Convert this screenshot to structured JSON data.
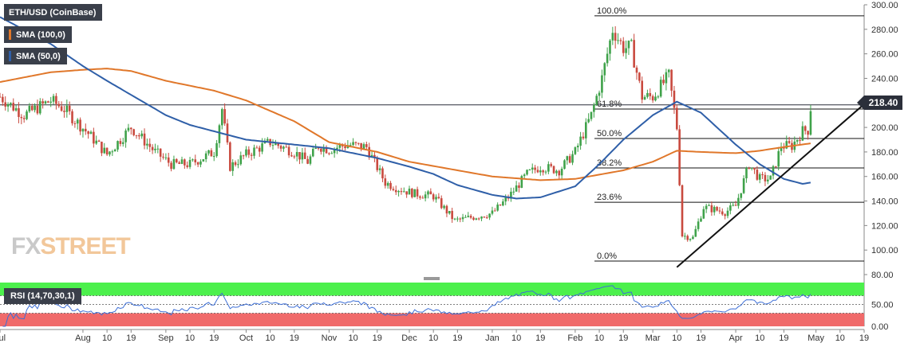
{
  "legend": {
    "symbol": "ETH/USD (CoinBase)",
    "sma100": "SMA (100,0)",
    "sma50": "SMA (50,0)",
    "rsi": "RSI (14,70,30,1)"
  },
  "colors": {
    "bull": "#3fa24a",
    "bear": "#c94a3f",
    "sma100": "#e0772a",
    "sma50": "#2f5fa8",
    "rsi_line": "#3d6fd6",
    "overbought": "#4cf04c",
    "oversold": "#f06a6a",
    "trendline": "#111111"
  },
  "logo": {
    "part1": "FX",
    "part2": "STREET"
  },
  "price_tag": "218.40",
  "chart_data": {
    "type": "candlestick",
    "title": "ETH/USD (CoinBase)",
    "y_axis": {
      "ticks": [
        80,
        100,
        120,
        140,
        160,
        180,
        200,
        220,
        240,
        260,
        280,
        300
      ],
      "ylim": [
        80,
        300
      ]
    },
    "x_axis": {
      "ticks": [
        {
          "label": "Jul",
          "date": "2019-07-01"
        },
        {
          "label": "Aug",
          "date": "2019-08-01"
        },
        {
          "label": "10",
          "date": "2019-08-10"
        },
        {
          "label": "19",
          "date": "2019-08-19"
        },
        {
          "label": "Sep",
          "date": "2019-09-01"
        },
        {
          "label": "10",
          "date": "2019-09-10"
        },
        {
          "label": "19",
          "date": "2019-09-19"
        },
        {
          "label": "Oct",
          "date": "2019-10-01"
        },
        {
          "label": "10",
          "date": "2019-10-10"
        },
        {
          "label": "19",
          "date": "2019-10-19"
        },
        {
          "label": "Nov",
          "date": "2019-11-01"
        },
        {
          "label": "10",
          "date": "2019-11-10"
        },
        {
          "label": "19",
          "date": "2019-11-19"
        },
        {
          "label": "Dec",
          "date": "2019-12-01"
        },
        {
          "label": "10",
          "date": "2019-12-10"
        },
        {
          "label": "19",
          "date": "2019-12-19"
        },
        {
          "label": "Jan",
          "date": "2020-01-01"
        },
        {
          "label": "10",
          "date": "2020-01-10"
        },
        {
          "label": "19",
          "date": "2020-01-19"
        },
        {
          "label": "Feb",
          "date": "2020-02-01"
        },
        {
          "label": "10",
          "date": "2020-02-10"
        },
        {
          "label": "19",
          "date": "2020-02-19"
        },
        {
          "label": "Mar",
          "date": "2020-03-01"
        },
        {
          "label": "10",
          "date": "2020-03-10"
        },
        {
          "label": "19",
          "date": "2020-03-19"
        },
        {
          "label": "Apr",
          "date": "2020-04-01"
        },
        {
          "label": "10",
          "date": "2020-04-10"
        },
        {
          "label": "19",
          "date": "2020-04-19"
        },
        {
          "label": "May",
          "date": "2020-05-01"
        },
        {
          "label": "10",
          "date": "2020-05-10"
        },
        {
          "label": "19",
          "date": "2020-05-19"
        }
      ],
      "range": [
        "2019-07-01",
        "2020-05-19"
      ]
    },
    "close_anchors": [
      [
        "2019-07-01",
        225
      ],
      [
        "2019-07-10",
        210
      ],
      [
        "2019-07-20",
        222
      ],
      [
        "2019-07-25",
        215
      ],
      [
        "2019-08-03",
        195
      ],
      [
        "2019-08-10",
        178
      ],
      [
        "2019-08-19",
        200
      ],
      [
        "2019-08-28",
        180
      ],
      [
        "2019-09-03",
        170
      ],
      [
        "2019-09-10",
        170
      ],
      [
        "2019-09-19",
        180
      ],
      [
        "2019-09-22",
        215
      ],
      [
        "2019-09-25",
        168
      ],
      [
        "2019-10-01",
        178
      ],
      [
        "2019-10-10",
        188
      ],
      [
        "2019-10-19",
        180
      ],
      [
        "2019-10-24",
        172
      ],
      [
        "2019-10-28",
        185
      ],
      [
        "2019-11-01",
        182
      ],
      [
        "2019-11-08",
        186
      ],
      [
        "2019-11-15",
        184
      ],
      [
        "2019-11-22",
        155
      ],
      [
        "2019-11-27",
        150
      ],
      [
        "2019-12-03",
        146
      ],
      [
        "2019-12-10",
        144
      ],
      [
        "2019-12-18",
        124
      ],
      [
        "2019-12-25",
        127
      ],
      [
        "2020-01-01",
        130
      ],
      [
        "2020-01-07",
        143
      ],
      [
        "2020-01-14",
        162
      ],
      [
        "2020-01-19",
        168
      ],
      [
        "2020-01-26",
        165
      ],
      [
        "2020-02-01",
        180
      ],
      [
        "2020-02-07",
        210
      ],
      [
        "2020-02-11",
        240
      ],
      [
        "2020-02-15",
        280
      ],
      [
        "2020-02-19",
        265
      ],
      [
        "2020-02-22",
        265
      ],
      [
        "2020-02-26",
        225
      ],
      [
        "2020-03-01",
        225
      ],
      [
        "2020-03-07",
        242
      ],
      [
        "2020-03-10",
        200
      ],
      [
        "2020-03-12",
        112
      ],
      [
        "2020-03-16",
        110
      ],
      [
        "2020-03-20",
        135
      ],
      [
        "2020-03-24",
        133
      ],
      [
        "2020-03-28",
        131
      ],
      [
        "2020-04-01",
        136
      ],
      [
        "2020-04-06",
        170
      ],
      [
        "2020-04-10",
        158
      ],
      [
        "2020-04-14",
        158
      ],
      [
        "2020-04-18",
        185
      ],
      [
        "2020-04-22",
        185
      ],
      [
        "2020-04-26",
        197
      ],
      [
        "2020-04-28",
        198
      ],
      [
        "2020-04-29",
        216
      ]
    ],
    "sma100_anchors": [
      [
        "2019-07-01",
        237
      ],
      [
        "2019-07-20",
        245
      ],
      [
        "2019-08-01",
        247
      ],
      [
        "2019-08-10",
        248
      ],
      [
        "2019-08-19",
        246
      ],
      [
        "2019-09-01",
        238
      ],
      [
        "2019-09-19",
        230
      ],
      [
        "2019-10-01",
        222
      ],
      [
        "2019-10-19",
        205
      ],
      [
        "2019-11-01",
        188
      ],
      [
        "2019-11-19",
        180
      ],
      [
        "2019-12-01",
        172
      ],
      [
        "2019-12-19",
        165
      ],
      [
        "2020-01-01",
        160
      ],
      [
        "2020-01-19",
        157
      ],
      [
        "2020-02-01",
        158
      ],
      [
        "2020-02-19",
        165
      ],
      [
        "2020-03-01",
        172
      ],
      [
        "2020-03-10",
        181
      ],
      [
        "2020-03-19",
        180
      ],
      [
        "2020-04-01",
        179
      ],
      [
        "2020-04-10",
        181
      ],
      [
        "2020-04-19",
        184
      ],
      [
        "2020-04-29",
        187
      ]
    ],
    "sma50_anchors": [
      [
        "2019-07-01",
        290
      ],
      [
        "2019-07-20",
        268
      ],
      [
        "2019-08-01",
        250
      ],
      [
        "2019-08-10",
        238
      ],
      [
        "2019-09-01",
        210
      ],
      [
        "2019-09-10",
        202
      ],
      [
        "2019-10-01",
        190
      ],
      [
        "2019-10-19",
        186
      ],
      [
        "2019-11-01",
        183
      ],
      [
        "2019-11-19",
        175
      ],
      [
        "2019-12-01",
        168
      ],
      [
        "2019-12-10",
        162
      ],
      [
        "2019-12-19",
        153
      ],
      [
        "2020-01-01",
        145
      ],
      [
        "2020-01-10",
        142
      ],
      [
        "2020-01-19",
        143
      ],
      [
        "2020-02-01",
        152
      ],
      [
        "2020-02-10",
        170
      ],
      [
        "2020-02-19",
        190
      ],
      [
        "2020-03-01",
        210
      ],
      [
        "2020-03-10",
        221
      ],
      [
        "2020-03-19",
        212
      ],
      [
        "2020-04-01",
        186
      ],
      [
        "2020-04-10",
        170
      ],
      [
        "2020-04-19",
        158
      ],
      [
        "2020-04-26",
        154
      ],
      [
        "2020-04-29",
        155
      ]
    ],
    "fibonacci": [
      {
        "label": "100.0%",
        "price": 291
      },
      {
        "label": "61.8%",
        "price": 215
      },
      {
        "label": "50.0%",
        "price": 191
      },
      {
        "label": "38.2%",
        "price": 167
      },
      {
        "label": "23.6%",
        "price": 139
      },
      {
        "label": "0.0%",
        "price": 91
      }
    ],
    "horizontal_line": {
      "price": 218.4
    },
    "trendline": [
      [
        "2020-03-10",
        86
      ],
      [
        "2020-05-19",
        219
      ]
    ],
    "rsi": {
      "levels": [
        70,
        50,
        30
      ],
      "ticks": [
        0,
        50
      ],
      "overbought": 70,
      "oversold": 30,
      "last": 66
    }
  }
}
